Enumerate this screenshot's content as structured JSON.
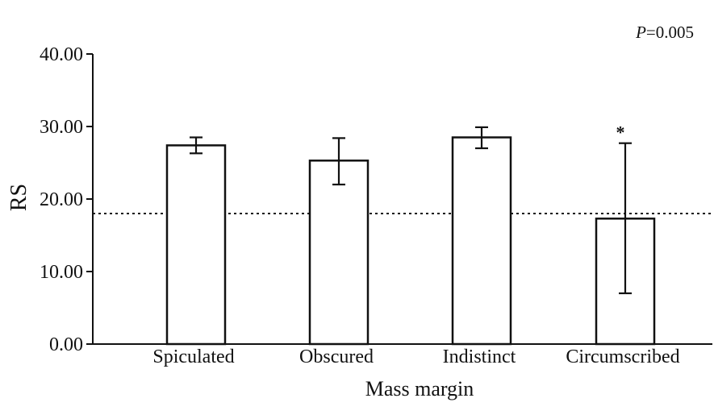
{
  "chart_data": {
    "type": "bar",
    "title": "",
    "xlabel": "Mass margin",
    "ylabel": "RS",
    "ylim": [
      0,
      40
    ],
    "yticks": [
      0,
      10,
      20,
      30,
      40
    ],
    "ytick_labels": [
      "0.00",
      "10.00",
      "20.00",
      "30.00",
      "40.00"
    ],
    "categories": [
      "Spiculated",
      "Obscured",
      "Indistinct",
      "Circumscribed"
    ],
    "values": [
      27.4,
      25.3,
      28.5,
      17.3
    ],
    "error_bars": [
      {
        "low": 26.3,
        "high": 28.5
      },
      {
        "low": 22.0,
        "high": 28.4
      },
      {
        "low": 27.0,
        "high": 29.9
      },
      {
        "low": 7.0,
        "high": 27.7
      }
    ],
    "reference_line": {
      "value": 18.0,
      "style": "dotted"
    },
    "annotations": {
      "p_value": {
        "prefix": "P",
        "suffix": "=0.005"
      },
      "significance": {
        "category": "Circumscribed",
        "marker": "*"
      }
    },
    "grid": false,
    "legend": "none"
  }
}
